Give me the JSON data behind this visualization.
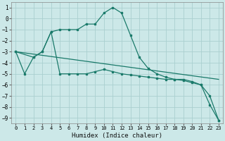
{
  "xlabel": "Humidex (Indice chaleur)",
  "background_color": "#cce8e8",
  "grid_color": "#aacfcf",
  "line_color": "#1a7a6a",
  "ylim": [
    -9.5,
    1.5
  ],
  "xlim": [
    -0.5,
    23.5
  ],
  "line1_x": [
    0,
    1,
    2,
    3,
    4,
    5,
    6,
    7,
    8,
    9,
    10,
    11,
    12,
    13,
    14,
    15,
    16,
    17,
    18,
    19,
    20,
    21,
    22,
    23
  ],
  "line1_y": [
    -3.0,
    -5.0,
    -3.5,
    -3.0,
    -1.2,
    -5.0,
    -5.0,
    -5.0,
    -5.0,
    -4.8,
    -4.6,
    -4.8,
    -5.0,
    -5.1,
    -5.2,
    -5.3,
    -5.4,
    -5.5,
    -5.5,
    -5.6,
    -5.8,
    -6.0,
    -7.0,
    -9.2
  ],
  "line2_x": [
    0,
    2,
    3,
    4,
    5,
    6,
    7,
    8,
    9,
    10,
    11,
    12,
    13,
    14,
    15,
    16,
    17,
    18,
    19,
    20,
    21,
    22,
    23
  ],
  "line2_y": [
    -3.0,
    -3.5,
    -3.0,
    -1.2,
    -1.0,
    -1.0,
    -1.0,
    -0.5,
    -0.5,
    0.5,
    1.0,
    0.5,
    -1.5,
    -3.5,
    -4.5,
    -5.0,
    -5.3,
    -5.5,
    -5.5,
    -5.7,
    -6.0,
    -7.8,
    -9.2
  ],
  "line3_x": [
    0,
    23
  ],
  "line3_y": [
    -3.0,
    -5.5
  ],
  "yticks": [
    1,
    0,
    -1,
    -2,
    -3,
    -4,
    -5,
    -6,
    -7,
    -8,
    -9
  ],
  "xticks": [
    0,
    1,
    2,
    3,
    4,
    5,
    6,
    7,
    8,
    9,
    10,
    11,
    12,
    13,
    14,
    15,
    16,
    17,
    18,
    19,
    20,
    21,
    22,
    23
  ]
}
